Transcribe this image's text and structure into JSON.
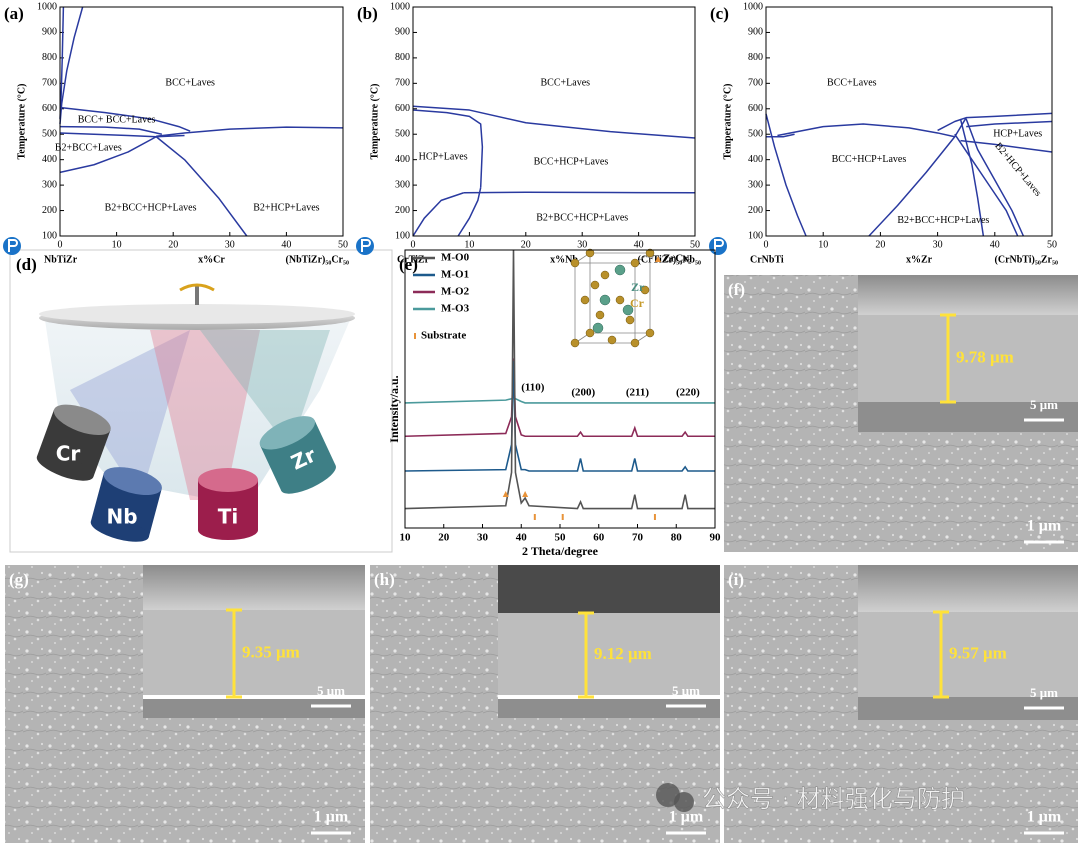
{
  "chart_data": [
    {
      "type": "line",
      "label": "(a)",
      "ylabel": "Temperature (°C)",
      "xlabel": "x%Cr",
      "left_label": "NbTiZr",
      "right_label": "(NbTiZr)₅₀Cr₅₀",
      "xlim": [
        0,
        50
      ],
      "xticks": [
        0,
        10,
        20,
        30,
        40,
        50
      ],
      "ylim": [
        100,
        1000
      ],
      "yticks": [
        100,
        200,
        300,
        400,
        500,
        600,
        700,
        800,
        900,
        1000
      ],
      "color": "#2a3aa0",
      "boundaries": [
        {
          "x": [
            4,
            2.5,
            1.2,
            0.3,
            0
          ],
          "y": [
            1000,
            880,
            750,
            620,
            540
          ]
        },
        {
          "x": [
            0.6,
            0.4,
            0.2,
            0
          ],
          "y": [
            1000,
            800,
            650,
            560
          ]
        },
        {
          "x": [
            0,
            8,
            16,
            21,
            23
          ],
          "y": [
            605,
            585,
            560,
            530,
            512
          ]
        },
        {
          "x": [
            0,
            8,
            14,
            18
          ],
          "y": [
            530,
            528,
            520,
            500
          ]
        },
        {
          "x": [
            0,
            6,
            12,
            17,
            22
          ],
          "y": [
            505,
            500,
            495,
            490,
            495
          ]
        },
        {
          "x": [
            17,
            22,
            30,
            40,
            50
          ],
          "y": [
            492,
            505,
            520,
            528,
            525
          ]
        },
        {
          "x": [
            0,
            6,
            12,
            17
          ],
          "y": [
            350,
            380,
            430,
            490
          ]
        },
        {
          "x": [
            17,
            22,
            28,
            33
          ],
          "y": [
            490,
            400,
            250,
            100
          ]
        }
      ],
      "regions": [
        "BCC+Laves",
        "BCC+ BCC+Laves",
        "B2+BCC+Laves",
        "B2+BCC+HCP+Laves",
        "B2+HCP+Laves"
      ]
    },
    {
      "type": "line",
      "label": "(b)",
      "ylabel": "Temperature (°C)",
      "xlabel": "x%Nb",
      "left_label": "CrTiZr",
      "right_label": "(CrTiZr)₅₀Nb₅₀",
      "xlim": [
        0,
        50
      ],
      "xticks": [
        0,
        10,
        20,
        30,
        40,
        50
      ],
      "ylim": [
        100,
        1000
      ],
      "yticks": [
        100,
        200,
        300,
        400,
        500,
        600,
        700,
        800,
        900,
        1000
      ],
      "color": "#2a3aa0",
      "boundaries": [
        {
          "x": [
            0,
            10,
            20,
            35,
            50
          ],
          "y": [
            610,
            595,
            545,
            510,
            485
          ]
        },
        {
          "x": [
            0,
            6,
            10,
            12,
            12.3,
            12
          ],
          "y": [
            595,
            585,
            570,
            540,
            450,
            290
          ]
        },
        {
          "x": [
            9,
            20,
            35,
            50
          ],
          "y": [
            270,
            272,
            271,
            270
          ]
        },
        {
          "x": [
            0,
            2,
            5,
            9
          ],
          "y": [
            100,
            170,
            240,
            270
          ]
        },
        {
          "x": [
            8,
            10,
            11.5,
            12
          ],
          "y": [
            100,
            170,
            240,
            290
          ]
        }
      ],
      "regions": [
        "BCC+Laves",
        "HCP+Laves",
        "BCC+HCP+Laves",
        "B2+BCC+HCP+Laves"
      ]
    },
    {
      "type": "line",
      "label": "(c)",
      "ylabel": "Temperature (°C)",
      "xlabel": "x%Zr",
      "left_label": "CrNbTi",
      "right_label": "(CrNbTi)₅₀Zr₅₀",
      "xlim": [
        0,
        50
      ],
      "xticks": [
        0,
        10,
        20,
        30,
        40,
        50
      ],
      "ylim": [
        100,
        1000
      ],
      "yticks": [
        100,
        200,
        300,
        400,
        500,
        600,
        700,
        800,
        900,
        1000
      ],
      "color": "#2a3aa0",
      "boundaries": [
        {
          "x": [
            0,
            1.5,
            3.5,
            5.5,
            7
          ],
          "y": [
            580,
            450,
            300,
            180,
            100
          ]
        },
        {
          "x": [
            0,
            3,
            5
          ],
          "y": [
            490,
            490,
            500
          ]
        },
        {
          "x": [
            2,
            10,
            17,
            25,
            30,
            33
          ],
          "y": [
            495,
            530,
            540,
            525,
            505,
            490
          ]
        },
        {
          "x": [
            30,
            33,
            35,
            40,
            50
          ],
          "y": [
            515,
            550,
            565,
            570,
            582
          ]
        },
        {
          "x": [
            35,
            40,
            50
          ],
          "y": [
            530,
            540,
            550
          ]
        },
        {
          "x": [
            34,
            40,
            50
          ],
          "y": [
            475,
            460,
            430
          ]
        },
        {
          "x": [
            35,
            33,
            28,
            23,
            18
          ],
          "y": [
            565,
            490,
            350,
            220,
            100
          ]
        },
        {
          "x": [
            33,
            36,
            39,
            42,
            44
          ],
          "y": [
            500,
            400,
            300,
            200,
            100
          ]
        },
        {
          "x": [
            35,
            37,
            40,
            43,
            45
          ],
          "y": [
            560,
            440,
            320,
            200,
            100
          ]
        },
        {
          "x": [
            34,
            35,
            36,
            37,
            38
          ],
          "y": [
            560,
            470,
            380,
            250,
            100
          ]
        }
      ],
      "regions": [
        "BCC+Laves",
        "BCC+HCP+Laves",
        "HCP+Laves",
        "B2+HCP+Laves",
        "B2+BCC+HCP+Laves"
      ]
    },
    {
      "type": "line",
      "label": "(e)",
      "xlabel": "2 Theta/degree",
      "ylabel": "Intensity/a.u.",
      "xlim": [
        10,
        90
      ],
      "xticks": [
        10,
        20,
        30,
        40,
        50,
        60,
        70,
        80,
        90
      ],
      "ylim": [
        0,
        100
      ],
      "x": [
        10,
        36,
        37.5,
        38,
        38.5,
        40,
        41,
        42,
        54.5,
        55.3,
        56,
        68.5,
        69.3,
        70,
        81.5,
        82.3,
        83,
        90
      ],
      "series": [
        {
          "name": "M-O0",
          "color": "#545454",
          "values": [
            7,
            8,
            20,
            100,
            20,
            9,
            10.8,
            8,
            7,
            9.4,
            7,
            7,
            12,
            7,
            7,
            12,
            7,
            7
          ]
        },
        {
          "name": "M-O1",
          "color": "#1d5a8c",
          "values": [
            20.5,
            21,
            30,
            60,
            30,
            21,
            21,
            20.5,
            20.5,
            25,
            20.5,
            20.5,
            25,
            20.5,
            20.5,
            22,
            20.5,
            20.5
          ]
        },
        {
          "name": "M-O2",
          "color": "#8c2b58",
          "values": [
            33,
            34,
            40,
            61,
            40,
            33.5,
            33,
            33,
            33,
            34.5,
            33,
            33,
            36,
            33,
            33,
            34.5,
            33,
            33
          ]
        },
        {
          "name": "M-O3",
          "color": "#4b9a9c",
          "values": [
            45,
            46,
            46.5,
            47,
            46.5,
            45.5,
            45,
            45,
            45,
            45,
            45,
            45,
            45,
            45,
            45,
            45,
            45,
            45
          ]
        }
      ],
      "peak_labels": [
        "(110)",
        "(200)",
        "(211)",
        "(220)"
      ],
      "phase_label": "ZrCr₂",
      "substrate_label": "Substrate",
      "atoms": [
        "Zr",
        "Cr"
      ],
      "zrcr2_peaks": [
        36,
        41
      ],
      "substrate_peaks": [
        43.5,
        50.7,
        74.5
      ]
    }
  ],
  "schematic": {
    "label": "(d)",
    "targets": [
      "Cr",
      "Nb",
      "Ti",
      "Zr"
    ]
  },
  "sem": [
    {
      "label": "(f)",
      "thickness": "9.78 μm",
      "inset_scale": "5 μm",
      "scale": "1 μm"
    },
    {
      "label": "(g)",
      "thickness": "9.35 μm",
      "inset_scale": "5 μm",
      "scale": "1 μm"
    },
    {
      "label": "(h)",
      "thickness": "9.12 μm",
      "inset_scale": "5 μm",
      "scale": "1 μm"
    },
    {
      "label": "(i)",
      "thickness": "9.57 μm",
      "inset_scale": "5 μm",
      "scale": "1 μm"
    }
  ],
  "watermark": "公众号 · 材料强化与防护"
}
